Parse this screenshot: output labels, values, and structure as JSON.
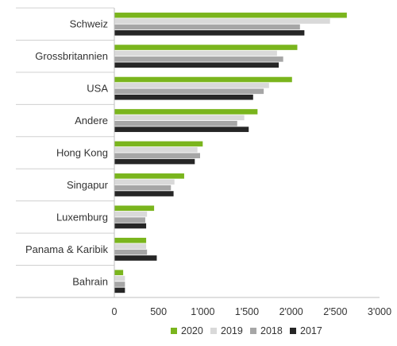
{
  "chart_data": {
    "type": "bar",
    "orientation": "horizontal",
    "categories": [
      "Schweiz",
      "Grossbritannien",
      "USA",
      "Andere",
      "Hong Kong",
      "Singapur",
      "Luxemburg",
      "Panama & Karibik",
      "Bahrain"
    ],
    "series": [
      {
        "name": "2020",
        "color": "#7ab51d",
        "values": [
          2630,
          2070,
          2010,
          1620,
          1000,
          790,
          450,
          360,
          100
        ]
      },
      {
        "name": "2019",
        "color": "#d9d9d9",
        "values": [
          2440,
          1840,
          1750,
          1470,
          940,
          680,
          370,
          360,
          120
        ]
      },
      {
        "name": "2018",
        "color": "#a6a6a6",
        "values": [
          2100,
          1910,
          1690,
          1390,
          970,
          640,
          350,
          370,
          120
        ]
      },
      {
        "name": "2017",
        "color": "#262626",
        "values": [
          2150,
          1860,
          1570,
          1520,
          910,
          670,
          360,
          480,
          120
        ]
      }
    ],
    "xlim": [
      0,
      3000
    ],
    "xticks": [
      0,
      500,
      1000,
      1500,
      2000,
      2500,
      3000
    ],
    "xtick_labels": [
      "0",
      "500",
      "1'000",
      "1'500",
      "2'000",
      "2'500",
      "3'000"
    ],
    "grid": "horizontal separators between categories",
    "legend_position": "bottom",
    "title": "",
    "xlabel": "",
    "ylabel": ""
  }
}
